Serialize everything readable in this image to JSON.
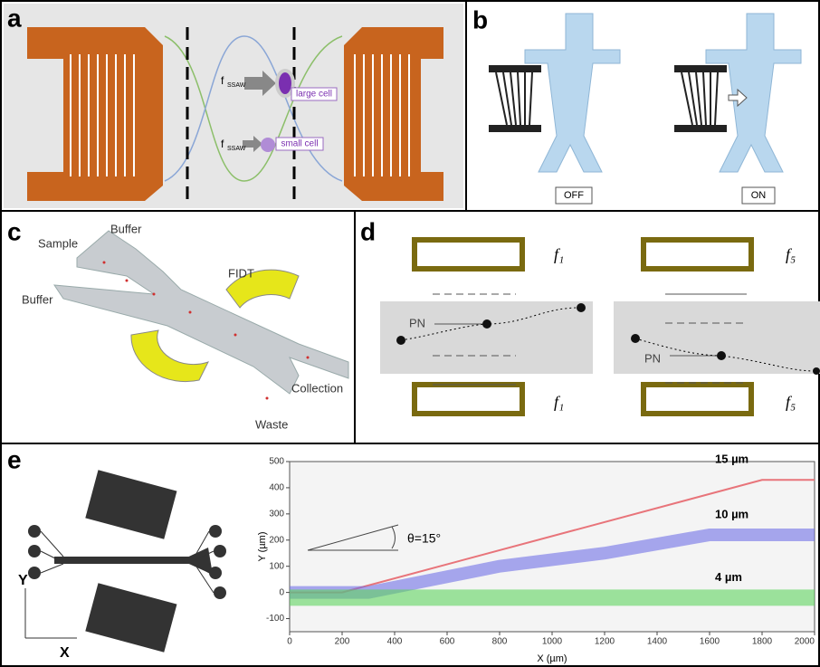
{
  "panels": {
    "a": {
      "label": "a",
      "force_symbol": "f",
      "force_subscript": "SSAW",
      "large_cell": "large cell",
      "small_cell": "small cell"
    },
    "b": {
      "label": "b",
      "states": [
        "OFF",
        "ON"
      ]
    },
    "c": {
      "label": "c",
      "inlets": [
        "Sample",
        "Buffer",
        "Buffer"
      ],
      "transducer": "FIDT",
      "outlets": [
        "Collection",
        "Waste"
      ]
    },
    "d": {
      "label": "d",
      "frequencies": [
        "f₁",
        "f₅"
      ],
      "particle": "PN"
    },
    "e": {
      "label": "e",
      "axis_y": "Y",
      "axis_x": "X",
      "angle": "θ=15°"
    }
  },
  "chart_data": {
    "type": "line",
    "xlabel": "X (µm)",
    "ylabel": "Y (µm)",
    "xlim": [
      0,
      2000
    ],
    "ylim": [
      -150,
      500
    ],
    "xticks": [
      0,
      200,
      400,
      600,
      800,
      1000,
      1200,
      1400,
      1600,
      1800,
      2000
    ],
    "yticks": [
      -100,
      0,
      100,
      200,
      300,
      400,
      500
    ],
    "series": [
      {
        "name": "15 µm",
        "color": "#e8747a",
        "x": [
          0,
          200,
          1800,
          2000
        ],
        "values": [
          0,
          0,
          430,
          430
        ]
      },
      {
        "name": "10 µm",
        "color": "#6f6fe6",
        "x": [
          0,
          300,
          800,
          1200,
          1600,
          2000
        ],
        "values": [
          0,
          0,
          100,
          150,
          220,
          220
        ]
      },
      {
        "name": "4 µm",
        "color": "#5fd35f",
        "x": [
          0,
          2000
        ],
        "values": [
          -20,
          -20
        ]
      }
    ]
  }
}
